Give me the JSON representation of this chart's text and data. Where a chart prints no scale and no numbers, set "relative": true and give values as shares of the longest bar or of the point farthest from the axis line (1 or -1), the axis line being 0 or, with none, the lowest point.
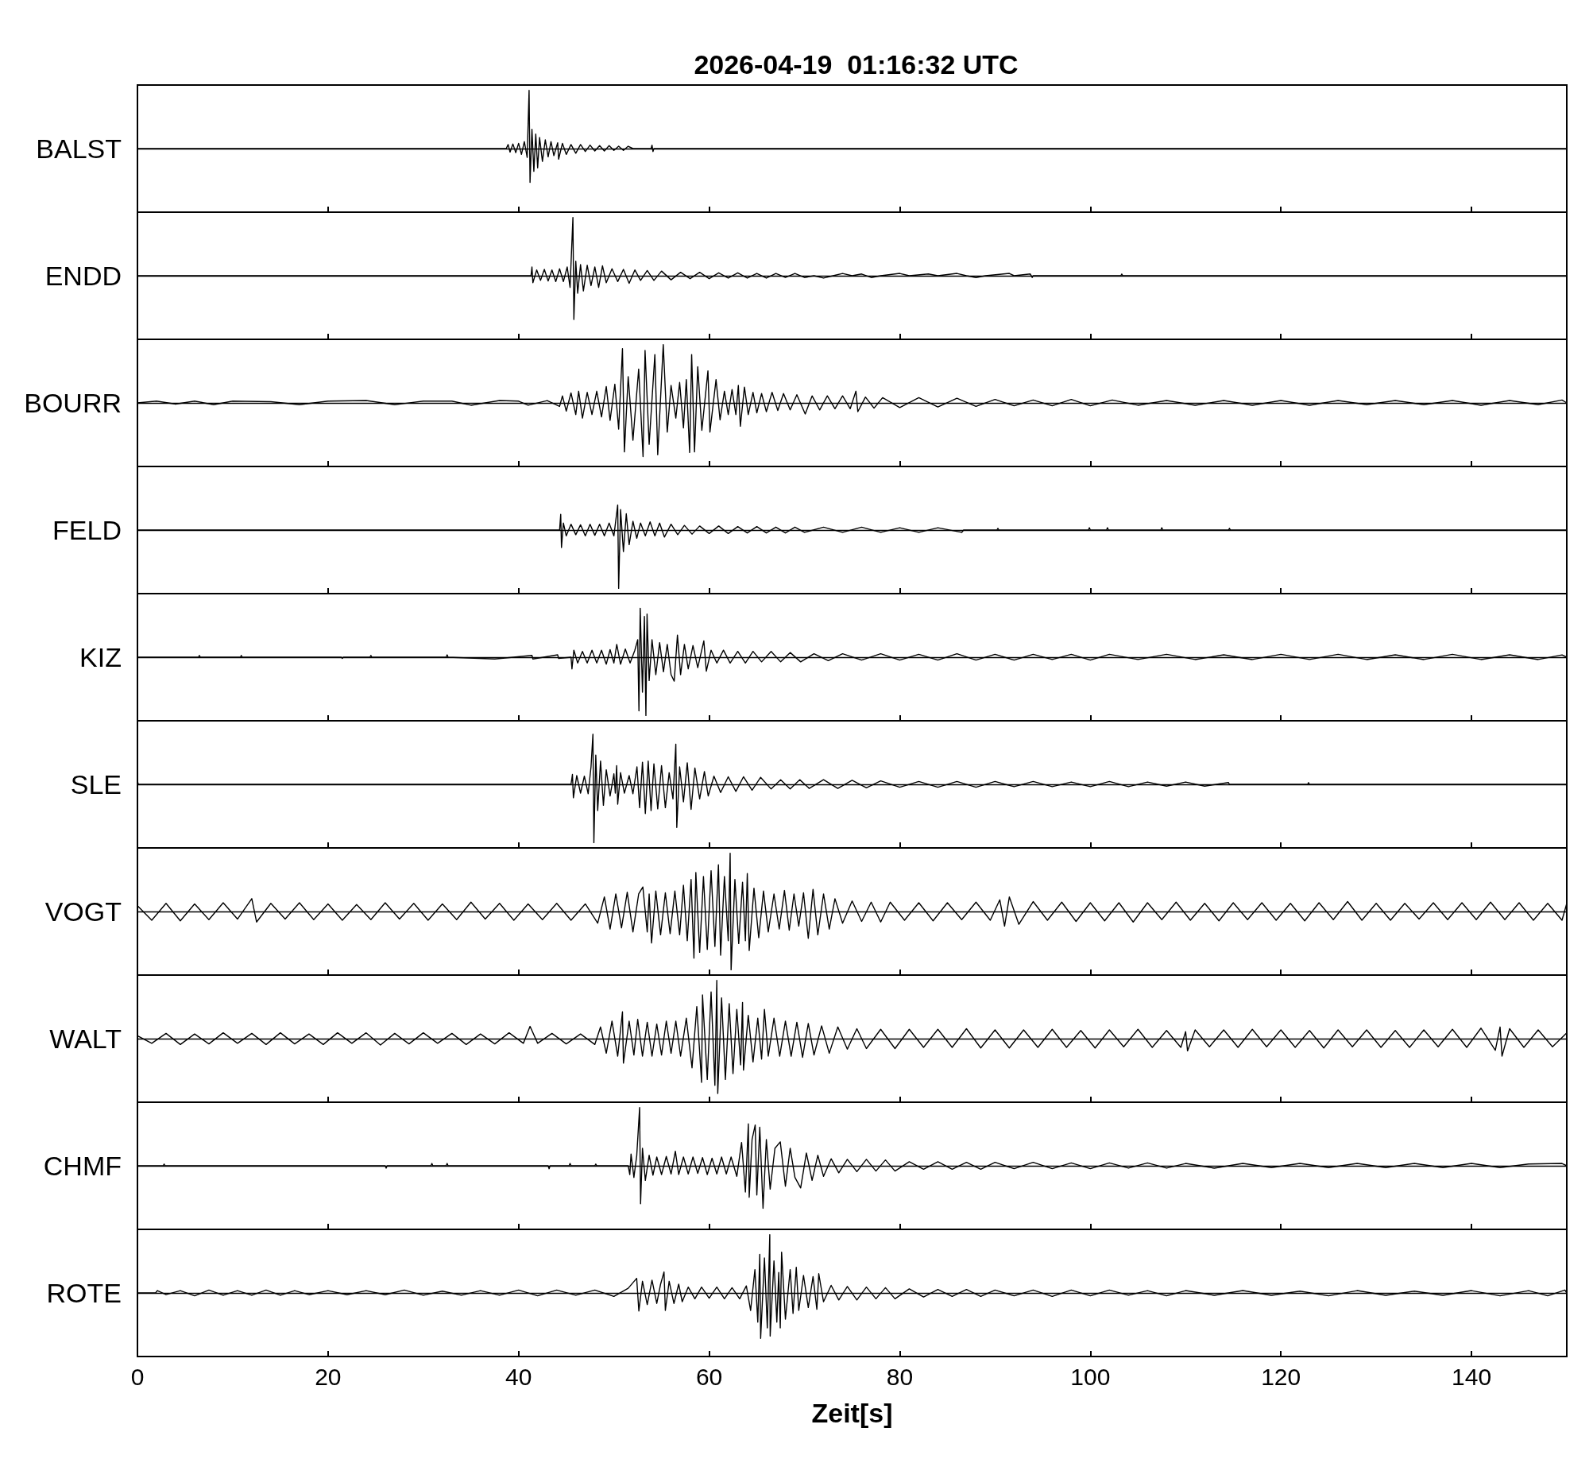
{
  "chart_data": [
    {
      "type": "line",
      "relative": true,
      "title": "2026-04-19  01:16:32 UTC",
      "ylabel": "BALST",
      "color": "#000000",
      "xlim": [
        0,
        150
      ],
      "xticks": [
        0,
        20,
        40,
        60,
        80,
        100,
        120,
        140
      ],
      "tick_labels": false,
      "x": [
        0,
        38.7,
        38.9,
        39.1,
        39.4,
        39.7,
        40.0,
        40.3,
        40.6,
        40.9,
        41.1,
        41.2,
        41.4,
        41.6,
        41.8,
        42.0,
        42.2,
        42.5,
        42.8,
        43.1,
        43.4,
        43.7,
        44.1,
        44.2,
        44.6,
        45.0,
        45.5,
        46.0,
        46.5,
        47.0,
        47.5,
        48.0,
        48.5,
        49.0,
        49.5,
        50.0,
        50.5,
        51.0,
        51.5,
        52.0,
        53.9,
        54.0,
        54.1,
        54.2,
        150
      ],
      "values": [
        0,
        0,
        0.07,
        -0.06,
        0.08,
        -0.07,
        0.09,
        -0.1,
        0.12,
        -0.15,
        1.0,
        -0.58,
        0.33,
        -0.39,
        0.25,
        -0.33,
        0.19,
        -0.22,
        0.15,
        -0.14,
        0.12,
        -0.12,
        0.1,
        -0.18,
        0.09,
        -0.1,
        0.07,
        -0.08,
        0.07,
        -0.05,
        0.06,
        -0.04,
        0.05,
        -0.04,
        0.05,
        -0.03,
        0.04,
        -0.03,
        0.04,
        0,
        0,
        0.06,
        -0.05,
        0,
        0
      ]
    },
    {
      "type": "line",
      "relative": true,
      "ylabel": "ENDD",
      "color": "#000000",
      "xlim": [
        0,
        150
      ],
      "xticks": [
        0,
        20,
        40,
        60,
        80,
        100,
        120,
        140
      ],
      "tick_labels": false,
      "x": [
        0,
        41.3,
        41.4,
        41.5,
        41.9,
        42.3,
        42.7,
        43.1,
        43.5,
        43.9,
        44.3,
        44.7,
        45.1,
        45.4,
        45.7,
        45.8,
        46.0,
        46.2,
        46.5,
        46.8,
        47.2,
        47.6,
        48.0,
        48.4,
        48.8,
        49.2,
        49.8,
        50.4,
        51.0,
        51.6,
        52.2,
        52.8,
        53.5,
        54.2,
        55.0,
        56.0,
        57.0,
        58.0,
        59.0,
        60.0,
        61.0,
        62.0,
        63.0,
        64.0,
        65.0,
        66.0,
        67.0,
        68.0,
        69.0,
        70.0,
        71,
        72,
        73,
        74,
        75,
        76,
        77,
        78,
        80,
        81,
        83,
        84,
        86,
        87,
        88,
        89,
        91.5,
        92,
        93.7,
        93.9,
        94,
        103.2,
        103.3,
        103.4,
        150
      ],
      "values": [
        0,
        0,
        0.15,
        -0.12,
        0.1,
        -0.08,
        0.11,
        -0.09,
        0.1,
        -0.1,
        0.12,
        -0.1,
        0.15,
        -0.2,
        1.0,
        -0.75,
        0.25,
        -0.3,
        0.19,
        -0.26,
        0.18,
        -0.17,
        0.15,
        -0.2,
        0.17,
        -0.12,
        0.12,
        -0.1,
        0.11,
        -0.13,
        0.1,
        -0.08,
        0.09,
        -0.08,
        0.08,
        -0.07,
        0.06,
        -0.05,
        0.06,
        -0.05,
        0.05,
        -0.04,
        0.05,
        -0.04,
        0.04,
        -0.04,
        0.04,
        -0.03,
        0.04,
        -0.03,
        0,
        -0.04,
        0,
        0.04,
        0,
        0.03,
        -0.03,
        0,
        0.04,
        0,
        0.03,
        0,
        0.04,
        0,
        -0.03,
        0,
        0.04,
        0,
        0.03,
        -0.03,
        0,
        0,
        0.03,
        0,
        0
      ]
    },
    {
      "type": "line",
      "relative": true,
      "ylabel": "BOURR",
      "color": "#000000",
      "xlim": [
        0,
        150
      ],
      "xticks": [
        0,
        20,
        40,
        60,
        80,
        100,
        120,
        140
      ],
      "tick_labels": false,
      "x": [
        0,
        2,
        4,
        6,
        8,
        10,
        14,
        17,
        20,
        24,
        27,
        30,
        33,
        35,
        38,
        40,
        41,
        43,
        44.3,
        44.6,
        45.0,
        45.5,
        46.0,
        46.3,
        46.7,
        47.2,
        47.7,
        48.2,
        48.7,
        49.2,
        49.6,
        50.1,
        50.5,
        50.9,
        51.1,
        51.5,
        52.0,
        52.6,
        53.06,
        53.27,
        53.7,
        54.3,
        54.6,
        55.18,
        55.6,
        56.0,
        56.5,
        56.9,
        57.3,
        57.6,
        57.95,
        58.16,
        58.46,
        58.8,
        59.23,
        59.87,
        60.08,
        60.72,
        61.14,
        61.6,
        62.0,
        62.4,
        62.8,
        63.06,
        63.27,
        63.7,
        64.1,
        64.6,
        65.0,
        65.5,
        66.0,
        66.6,
        67.2,
        67.8,
        68.5,
        69.2,
        70.08,
        70.8,
        71.6,
        72.4,
        73.2,
        74.0,
        74.8,
        75.4,
        75.6,
        76.4,
        77.3,
        78.2,
        80,
        82,
        84,
        86,
        88,
        90,
        92,
        94,
        96,
        98,
        100,
        102.3,
        105,
        108,
        111,
        114,
        117,
        120,
        123,
        126,
        129,
        132,
        135,
        138,
        141,
        144,
        147,
        149.5,
        150
      ],
      "values": [
        0,
        0.03,
        -0.02,
        0.03,
        -0.03,
        0.03,
        0.02,
        -0.03,
        0.03,
        0.04,
        -0.03,
        0.03,
        0.03,
        -0.04,
        0.04,
        0.03,
        -0.04,
        0.04,
        -0.06,
        0.12,
        -0.14,
        0.17,
        -0.2,
        0.2,
        -0.26,
        0.18,
        -0.2,
        0.2,
        -0.24,
        0.28,
        -0.3,
        0.32,
        -0.45,
        0.93,
        -0.84,
        0.45,
        -0.64,
        0.58,
        -0.92,
        0.9,
        -0.71,
        0.83,
        -0.89,
        1.0,
        -0.5,
        0.3,
        -0.26,
        0.35,
        -0.43,
        0.4,
        -0.85,
        0.83,
        -0.84,
        0.62,
        -0.47,
        0.55,
        -0.5,
        0.4,
        -0.29,
        0.2,
        -0.2,
        0.23,
        -0.2,
        0.3,
        -0.4,
        0.27,
        -0.2,
        0.18,
        -0.17,
        0.16,
        -0.15,
        0.18,
        -0.13,
        0.16,
        -0.12,
        0.14,
        -0.19,
        0.12,
        -0.12,
        0.12,
        -0.1,
        0.12,
        -0.1,
        0.2,
        -0.15,
        0.1,
        -0.09,
        0.09,
        -0.08,
        0.09,
        -0.07,
        0.08,
        -0.06,
        0.06,
        -0.05,
        0.05,
        -0.05,
        0.06,
        -0.05,
        0.05,
        -0.04,
        0.04,
        -0.04,
        0.04,
        -0.04,
        0.04,
        -0.04,
        0.04,
        -0.03,
        0.04,
        -0.03,
        0.04,
        -0.04,
        0.04,
        -0.03,
        0.05,
        0
      ]
    },
    {
      "type": "line",
      "relative": true,
      "ylabel": "FELD",
      "color": "#000000",
      "xlim": [
        0,
        150
      ],
      "xticks": [
        0,
        20,
        40,
        60,
        80,
        100,
        120,
        140
      ],
      "tick_labels": false,
      "x": [
        0,
        44.3,
        44.42,
        44.5,
        44.7,
        45.0,
        45.5,
        46.0,
        46.5,
        47.0,
        47.5,
        48.0,
        48.5,
        49.0,
        49.5,
        50.0,
        50.4,
        50.5,
        50.7,
        51.0,
        51.3,
        51.6,
        52.0,
        52.4,
        52.8,
        53.3,
        53.8,
        54.3,
        54.8,
        55.3,
        56.0,
        56.7,
        57.4,
        58.2,
        59.0,
        60.0,
        61.0,
        62.0,
        63.0,
        64.0,
        65.0,
        66.0,
        67.0,
        68.0,
        69.0,
        70.0,
        72.0,
        74.0,
        76.0,
        78.0,
        80.0,
        82.0,
        84.0,
        86.5,
        86.7,
        90.2,
        90.3,
        90.4,
        99.8,
        99.9,
        100,
        101.7,
        101.8,
        101.9,
        107.4,
        107.5,
        107.6,
        114.5,
        114.6,
        114.7,
        150
      ],
      "values": [
        0,
        0,
        0.27,
        -0.3,
        0.12,
        -0.1,
        0.1,
        -0.08,
        0.09,
        -0.1,
        0.1,
        -0.09,
        0.1,
        -0.1,
        0.12,
        -0.1,
        0.43,
        -1.0,
        0.35,
        -0.37,
        0.28,
        -0.25,
        0.15,
        -0.14,
        0.12,
        -0.1,
        0.14,
        -0.1,
        0.12,
        -0.12,
        0.1,
        -0.08,
        0.08,
        -0.07,
        0.07,
        -0.06,
        0.07,
        -0.06,
        0.06,
        -0.05,
        0.06,
        -0.05,
        0.05,
        -0.05,
        0.05,
        -0.04,
        0.05,
        -0.04,
        0.05,
        -0.04,
        0.04,
        -0.04,
        0.04,
        -0.04,
        0,
        0,
        0.03,
        0,
        0,
        0.04,
        0,
        0,
        0.04,
        0,
        0,
        0.04,
        0,
        0,
        0.03,
        0,
        0
      ]
    },
    {
      "type": "line",
      "relative": true,
      "ylabel": "KIZ",
      "color": "#000000",
      "xlim": [
        0,
        150
      ],
      "xticks": [
        0,
        20,
        40,
        60,
        80,
        100,
        120,
        140
      ],
      "tick_labels": false,
      "x": [
        0,
        6.4,
        6.5,
        6.6,
        10.8,
        10.9,
        11.0,
        21.4,
        21.5,
        21.6,
        24.4,
        24.5,
        24.6,
        32.4,
        32.5,
        32.6,
        37.5,
        41.4,
        41.5,
        44.1,
        44.2,
        45.5,
        45.6,
        45.8,
        46.2,
        46.7,
        47.2,
        47.7,
        48.2,
        48.7,
        49.2,
        49.6,
        50.0,
        50.3,
        50.7,
        51.2,
        51.7,
        52.2,
        52.5,
        52.63,
        52.76,
        53.0,
        53.2,
        53.36,
        53.48,
        53.7,
        54.0,
        54.4,
        54.8,
        55.2,
        55.6,
        56.0,
        56.33,
        56.67,
        57.0,
        57.4,
        57.8,
        58.3,
        58.8,
        59.44,
        59.7,
        60.2,
        60.8,
        61.5,
        62.2,
        63.0,
        63.8,
        64.6,
        65.5,
        66.5,
        67.5,
        68.5,
        69.6,
        71,
        72.5,
        74,
        76,
        78,
        80,
        82,
        84,
        86,
        88,
        90,
        92,
        94,
        96,
        98,
        100,
        102,
        105,
        108,
        111,
        114,
        117,
        120,
        123,
        126,
        129,
        132,
        135,
        138,
        141,
        144,
        147,
        149.5,
        150
      ],
      "values": [
        0,
        0,
        0.03,
        0,
        0,
        0.03,
        0,
        0,
        -0.02,
        0,
        0,
        0.03,
        0,
        0,
        0.04,
        0,
        -0.03,
        0.03,
        -0.03,
        0.04,
        -0.02,
        0,
        -0.2,
        0.12,
        -0.1,
        0.1,
        -0.1,
        0.12,
        -0.1,
        0.12,
        -0.12,
        0.13,
        -0.1,
        0.22,
        -0.12,
        0.14,
        -0.1,
        0.12,
        0.3,
        -0.92,
        0.84,
        -0.6,
        0.7,
        -1.0,
        0.74,
        -0.4,
        0.3,
        -0.3,
        0.25,
        -0.25,
        0.22,
        -0.3,
        -0.41,
        0.38,
        -0.3,
        0.22,
        -0.2,
        0.2,
        -0.18,
        0.28,
        -0.24,
        0.12,
        -0.1,
        0.12,
        -0.1,
        0.1,
        -0.1,
        0.1,
        -0.08,
        0.1,
        -0.08,
        0.08,
        -0.08,
        0.06,
        -0.06,
        0.06,
        -0.05,
        0.06,
        -0.05,
        0.05,
        -0.05,
        0.06,
        -0.05,
        0.05,
        -0.05,
        0.05,
        -0.04,
        0.05,
        -0.05,
        0.05,
        -0.04,
        0.05,
        -0.04,
        0.04,
        -0.04,
        0.05,
        -0.04,
        0.05,
        -0.04,
        0.04,
        -0.04,
        0.05,
        -0.04,
        0.04,
        -0.04,
        0.04,
        0
      ]
    },
    {
      "type": "line",
      "relative": true,
      "ylabel": "SLE",
      "color": "#000000",
      "xlim": [
        0,
        150
      ],
      "xticks": [
        0,
        20,
        40,
        60,
        80,
        100,
        120,
        140
      ],
      "tick_labels": false,
      "x": [
        0,
        0.1,
        45.5,
        45.65,
        45.75,
        46.1,
        46.5,
        46.9,
        47.3,
        47.6,
        47.8,
        47.9,
        48.1,
        48.3,
        48.6,
        48.9,
        49.2,
        49.6,
        50.0,
        50.15,
        50.29,
        50.4,
        50.7,
        51.1,
        51.6,
        52.0,
        52.42,
        52.7,
        53.0,
        53.3,
        53.6,
        53.9,
        54.2,
        54.6,
        55.0,
        55.4,
        55.8,
        56.2,
        56.5,
        56.6,
        56.9,
        57.3,
        57.7,
        58.1,
        58.5,
        59.0,
        59.5,
        59.9,
        60.5,
        61.2,
        62.0,
        62.8,
        63.6,
        64.5,
        65.4,
        66.5,
        67.5,
        68.5,
        69.5,
        70.5,
        72,
        73.5,
        75,
        76.5,
        78,
        80,
        82,
        84,
        86,
        88,
        90,
        92,
        94,
        96,
        98,
        100,
        102,
        104,
        106,
        108,
        110,
        112,
        114.5,
        114.6,
        122.8,
        122.9,
        123.0,
        150
      ],
      "values": [
        0.05,
        0,
        0,
        0.17,
        -0.23,
        0.15,
        -0.15,
        0.14,
        -0.16,
        0.3,
        0.86,
        -1.0,
        0.5,
        -0.45,
        0.4,
        -0.36,
        0.25,
        -0.2,
        0.18,
        -0.15,
        0.32,
        -0.34,
        0.2,
        -0.15,
        0.15,
        -0.16,
        0.3,
        -0.4,
        0.38,
        -0.5,
        0.4,
        -0.45,
        0.35,
        -0.42,
        0.32,
        -0.4,
        0.2,
        -0.25,
        0.69,
        -0.74,
        0.3,
        -0.3,
        0.37,
        -0.43,
        0.28,
        -0.25,
        0.22,
        -0.2,
        0.14,
        -0.14,
        0.13,
        -0.12,
        0.13,
        -0.1,
        0.12,
        -0.08,
        0.08,
        -0.08,
        0.08,
        -0.07,
        0.08,
        -0.07,
        0.07,
        -0.06,
        0.06,
        -0.05,
        0.05,
        -0.05,
        0.05,
        -0.05,
        0.05,
        -0.04,
        0.05,
        -0.04,
        0.04,
        -0.04,
        0.05,
        -0.04,
        0.04,
        -0.03,
        0.04,
        -0.03,
        0.03,
        0,
        0,
        0.03,
        0,
        0
      ]
    },
    {
      "type": "line",
      "relative": true,
      "ylabel": "VOGT",
      "color": "#000000",
      "xlim": [
        0,
        150
      ],
      "xticks": [
        0,
        20,
        40,
        60,
        80,
        100,
        120,
        140
      ],
      "tick_labels": false,
      "x": [
        0,
        1.5,
        3,
        4.5,
        6,
        7.5,
        9,
        10.5,
        12,
        12.5,
        14,
        15.5,
        17,
        18.5,
        20,
        21.5,
        23,
        24.5,
        26,
        27.5,
        29,
        30.5,
        32,
        33.5,
        35,
        36.5,
        38,
        39.5,
        41,
        42.5,
        44,
        45.5,
        47,
        48.3,
        49.0,
        49.6,
        50.2,
        50.8,
        51.4,
        52.0,
        52.6,
        53.04,
        53.5,
        53.7,
        53.95,
        54.4,
        54.9,
        55.4,
        55.9,
        56.4,
        56.9,
        57.3,
        57.7,
        58.1,
        58.4,
        58.6,
        59.0,
        59.4,
        59.8,
        60.2,
        60.6,
        60.97,
        61.2,
        61.6,
        62.0,
        62.2,
        62.3,
        62.7,
        63.1,
        63.5,
        63.8,
        64.0,
        64.2,
        64.7,
        65.2,
        65.7,
        66.2,
        66.8,
        67.35,
        67.9,
        68.4,
        68.9,
        69.4,
        69.9,
        70.4,
        70.9,
        71.4,
        72.0,
        72.6,
        73.2,
        74,
        75,
        76,
        77,
        78,
        79,
        80.5,
        82,
        83.5,
        85,
        86.5,
        88,
        89.5,
        90.5,
        91,
        91.5,
        92.5,
        94,
        95.5,
        97,
        98.5,
        100,
        101.5,
        103,
        104.5,
        106,
        107.5,
        109,
        110.5,
        112,
        113.5,
        115,
        116.5,
        118,
        119.5,
        121,
        122.5,
        124,
        125.5,
        127,
        128.5,
        130,
        131.5,
        133,
        134.5,
        136,
        137.5,
        139,
        140.5,
        142,
        143.5,
        145,
        146.5,
        148,
        149.5,
        150
      ],
      "values": [
        0.1,
        -0.15,
        0.14,
        -0.16,
        0.13,
        -0.14,
        0.15,
        -0.13,
        0.22,
        -0.18,
        0.14,
        -0.13,
        0.15,
        -0.14,
        0.13,
        -0.15,
        0.12,
        -0.14,
        0.15,
        -0.13,
        0.14,
        -0.15,
        0.13,
        -0.14,
        0.16,
        -0.13,
        0.14,
        -0.15,
        0.13,
        -0.14,
        0.14,
        -0.15,
        0.13,
        -0.2,
        0.25,
        -0.3,
        0.3,
        -0.28,
        0.33,
        -0.35,
        0.3,
        0.42,
        -0.35,
        0.3,
        -0.54,
        0.35,
        -0.4,
        0.32,
        -0.38,
        0.35,
        -0.4,
        0.45,
        -0.5,
        0.55,
        -0.8,
        0.67,
        -0.7,
        0.6,
        -0.65,
        0.7,
        -0.6,
        0.8,
        -0.75,
        0.6,
        -0.5,
        1.0,
        -1.0,
        0.55,
        -0.55,
        0.5,
        -0.5,
        0.65,
        -0.67,
        0.4,
        -0.45,
        0.35,
        -0.35,
        0.3,
        -0.3,
        0.36,
        -0.32,
        0.3,
        -0.25,
        0.32,
        -0.46,
        0.38,
        -0.4,
        0.3,
        -0.3,
        0.22,
        -0.2,
        0.18,
        -0.17,
        0.16,
        -0.18,
        0.16,
        -0.15,
        0.15,
        -0.16,
        0.15,
        -0.14,
        0.16,
        -0.15,
        0.2,
        -0.25,
        0.25,
        -0.22,
        0.17,
        -0.15,
        0.16,
        -0.17,
        0.15,
        -0.16,
        0.15,
        -0.18,
        0.15,
        -0.14,
        0.16,
        -0.15,
        0.14,
        -0.16,
        0.15,
        -0.14,
        0.15,
        -0.15,
        0.14,
        -0.16,
        0.15,
        -0.14,
        0.17,
        -0.15,
        0.14,
        -0.15,
        0.14,
        -0.13,
        0.15,
        -0.14,
        0.15,
        -0.14,
        0.16,
        -0.14,
        0.15,
        -0.15,
        0.14,
        -0.15,
        0.14
      ]
    },
    {
      "type": "line",
      "relative": true,
      "ylabel": "WALT",
      "color": "#000000",
      "xlim": [
        0,
        150
      ],
      "xticks": [
        0,
        20,
        40,
        60,
        80,
        100,
        120,
        140
      ],
      "tick_labels": false,
      "x": [
        0,
        1.5,
        3,
        4.5,
        6,
        7.5,
        9,
        10.5,
        12,
        13.5,
        15,
        16.5,
        18,
        19.5,
        21,
        22.5,
        24,
        25.5,
        27,
        28.5,
        30,
        31.5,
        33,
        34.5,
        36,
        37.5,
        39,
        40.5,
        41.2,
        42,
        43.5,
        45,
        46.5,
        48,
        48.6,
        49.2,
        49.8,
        50.4,
        50.9,
        51.0,
        51.6,
        52.1,
        52.5,
        53.0,
        53.5,
        54.0,
        54.5,
        55.0,
        55.5,
        56.0,
        56.5,
        57.0,
        57.6,
        58.2,
        58.7,
        59.2,
        59.3,
        59.8,
        60.2,
        60.6,
        60.8,
        60.9,
        61.3,
        61.7,
        62.1,
        62.5,
        62.9,
        63.3,
        63.5,
        63.6,
        64.1,
        64.6,
        65.1,
        65.5,
        65.8,
        66.2,
        66.8,
        67.4,
        68.0,
        68.6,
        69.2,
        69.8,
        70.4,
        71.0,
        71.8,
        72.6,
        73.5,
        74.5,
        75.5,
        76.5,
        78,
        79.5,
        81,
        82.5,
        84,
        85.5,
        87,
        88.5,
        90,
        91.5,
        93,
        94.5,
        96,
        97.5,
        99,
        100.5,
        102,
        103.5,
        105,
        106.5,
        108,
        109.5,
        110,
        110.2,
        111,
        112.5,
        114,
        115.5,
        117,
        118.5,
        120,
        121.5,
        123,
        124.5,
        126,
        127.5,
        129,
        130.5,
        132,
        133.5,
        135,
        136.5,
        138,
        139.5,
        141,
        142.5,
        143,
        143.2,
        144,
        145.5,
        147,
        148.5,
        150
      ],
      "values": [
        0.05,
        -0.08,
        0.09,
        -0.1,
        0.08,
        -0.09,
        0.1,
        -0.08,
        0.09,
        -0.1,
        0.1,
        -0.09,
        0.08,
        -0.1,
        0.1,
        -0.08,
        0.1,
        -0.11,
        0.09,
        -0.09,
        0.1,
        -0.08,
        0.09,
        -0.1,
        0.08,
        -0.09,
        0.1,
        -0.08,
        0.21,
        -0.08,
        0.09,
        -0.09,
        0.08,
        -0.1,
        0.2,
        -0.25,
        0.3,
        -0.3,
        0.46,
        -0.42,
        0.3,
        -0.28,
        0.33,
        -0.3,
        0.28,
        -0.3,
        0.25,
        -0.28,
        0.3,
        -0.25,
        0.3,
        -0.3,
        0.35,
        -0.5,
        0.55,
        -0.75,
        0.75,
        -0.7,
        0.8,
        -0.8,
        1.0,
        -0.94,
        0.7,
        -0.7,
        0.6,
        -0.6,
        0.5,
        -0.45,
        0.62,
        -0.54,
        0.4,
        -0.4,
        0.35,
        -0.35,
        0.5,
        -0.3,
        0.35,
        -0.3,
        0.3,
        -0.3,
        0.28,
        -0.32,
        0.26,
        -0.28,
        0.22,
        -0.25,
        0.2,
        -0.18,
        0.17,
        -0.17,
        0.16,
        -0.17,
        0.16,
        -0.15,
        0.16,
        -0.15,
        0.17,
        -0.16,
        0.15,
        -0.16,
        0.15,
        -0.15,
        0.16,
        -0.15,
        0.14,
        -0.16,
        0.15,
        -0.14,
        0.16,
        -0.15,
        0.14,
        -0.15,
        0.12,
        -0.21,
        0.15,
        -0.14,
        0.15,
        -0.15,
        0.16,
        -0.14,
        0.15,
        -0.15,
        0.14,
        -0.16,
        0.15,
        -0.14,
        0.15,
        -0.15,
        0.14,
        -0.15,
        0.15,
        -0.14,
        0.16,
        -0.15,
        0.18,
        -0.2,
        0.2,
        -0.3,
        0.17,
        -0.15,
        0.15,
        -0.14,
        0.1
      ]
    },
    {
      "type": "line",
      "relative": true,
      "ylabel": "CHMF",
      "color": "#000000",
      "xlim": [
        0,
        150
      ],
      "xticks": [
        0,
        20,
        40,
        60,
        80,
        100,
        120,
        140
      ],
      "tick_labels": false,
      "x": [
        0,
        2.7,
        2.8,
        2.9,
        26.0,
        26.1,
        26.2,
        30.8,
        30.9,
        31.0,
        32.4,
        32.5,
        32.6,
        43.1,
        43.2,
        43.3,
        45.3,
        45.4,
        45.5,
        48.0,
        48.1,
        48.2,
        51.5,
        51.67,
        51.8,
        52.1,
        52.4,
        52.7,
        52.8,
        53.0,
        53.3,
        53.7,
        54.1,
        54.5,
        55.0,
        55.5,
        56.0,
        56.45,
        56.8,
        57.3,
        57.8,
        58.3,
        58.8,
        59.3,
        59.8,
        60.3,
        60.8,
        61.3,
        61.8,
        62.3,
        62.9,
        63.4,
        63.8,
        64.11,
        64.2,
        64.5,
        64.83,
        65.0,
        65.31,
        65.65,
        66.0,
        66.4,
        66.9,
        67.46,
        68.0,
        68.5,
        69.0,
        69.6,
        70.2,
        70.8,
        71.4,
        72.0,
        72.8,
        73.6,
        74.5,
        75.5,
        76.5,
        77.5,
        78.5,
        79.5,
        81,
        82.5,
        84,
        85.5,
        87,
        88.5,
        90,
        92,
        94,
        96,
        98,
        100,
        102,
        104,
        106,
        108,
        110,
        113,
        116,
        119,
        122,
        125,
        128,
        131,
        134,
        137,
        140,
        143,
        146,
        149.5,
        150
      ],
      "values": [
        0,
        0,
        0.03,
        0,
        0,
        -0.04,
        0,
        0,
        0.04,
        0,
        0,
        0.04,
        0,
        0,
        -0.05,
        0,
        0,
        0.04,
        0,
        0,
        0.03,
        0,
        0,
        -0.15,
        0.2,
        -0.2,
        0.18,
        1.0,
        -0.65,
        0.3,
        -0.25,
        0.18,
        -0.16,
        0.15,
        -0.15,
        0.16,
        -0.14,
        0.25,
        -0.15,
        0.15,
        -0.14,
        0.15,
        -0.13,
        0.14,
        -0.15,
        0.13,
        -0.14,
        0.15,
        -0.14,
        0.15,
        -0.18,
        0.4,
        -0.45,
        0.72,
        -0.54,
        0.45,
        0.7,
        -0.5,
        0.66,
        -0.73,
        0.45,
        -0.4,
        0.3,
        0.41,
        -0.35,
        0.3,
        -0.2,
        -0.38,
        0.22,
        -0.25,
        0.18,
        -0.18,
        0.12,
        -0.12,
        0.11,
        -0.1,
        0.11,
        -0.09,
        0.1,
        -0.09,
        0.07,
        -0.06,
        0.07,
        -0.06,
        0.06,
        -0.06,
        0.06,
        -0.05,
        0.06,
        -0.05,
        0.05,
        -0.05,
        0.05,
        -0.04,
        0.05,
        -0.04,
        0.04,
        -0.04,
        0.04,
        -0.03,
        0.04,
        -0.03,
        0.04,
        -0.03,
        0.04,
        -0.03,
        0.04,
        -0.03,
        0.03,
        0.04,
        0
      ]
    },
    {
      "type": "line",
      "relative": true,
      "ylabel": "ROTE",
      "xlabel": "Zeit[s]",
      "color": "#000000",
      "xlim": [
        0,
        150
      ],
      "xticks": [
        0,
        20,
        40,
        60,
        80,
        100,
        120,
        140
      ],
      "tick_labels": "x",
      "x": [
        0,
        1.9,
        2.1,
        3,
        4.5,
        6,
        7.5,
        9,
        10.5,
        12,
        13.5,
        15,
        16.5,
        18,
        20,
        22,
        24,
        26,
        28,
        30,
        32,
        34,
        36,
        38,
        40,
        42,
        44,
        46,
        48,
        50,
        51.5,
        52.39,
        52.62,
        53.0,
        53.5,
        54.0,
        54.5,
        54.9,
        55.26,
        55.4,
        55.8,
        56.3,
        56.8,
        57.17,
        57.8,
        58.5,
        59.2,
        60.0,
        60.8,
        61.6,
        62.4,
        63.2,
        63.9,
        64.35,
        64.8,
        65.1,
        65.31,
        65.4,
        65.8,
        66.1,
        66.36,
        66.4,
        66.8,
        67.1,
        67.3,
        67.46,
        67.6,
        68.0,
        68.5,
        68.8,
        69.14,
        69.4,
        69.9,
        70.4,
        70.9,
        71.3,
        71.5,
        72.0,
        72.8,
        73.6,
        74.5,
        75.5,
        76.5,
        77.5,
        78.5,
        79.5,
        81,
        82.5,
        84,
        85.5,
        87,
        88.5,
        90,
        92,
        94,
        96,
        98,
        100,
        102,
        104,
        106,
        108,
        110,
        113,
        116,
        119,
        122,
        125,
        128,
        131,
        134,
        137,
        140,
        143,
        146,
        148,
        149.8,
        150
      ],
      "values": [
        0,
        0,
        0.04,
        -0.03,
        0.04,
        -0.05,
        0.05,
        -0.04,
        0.04,
        -0.04,
        0.05,
        -0.04,
        0.04,
        -0.03,
        0.04,
        -0.03,
        0.04,
        -0.03,
        0.05,
        -0.04,
        0.03,
        -0.04,
        0.04,
        -0.04,
        0.05,
        -0.05,
        0.05,
        -0.04,
        0.05,
        -0.06,
        0.08,
        0.25,
        -0.31,
        0.2,
        -0.2,
        0.22,
        -0.18,
        0.15,
        0.36,
        -0.3,
        0.2,
        -0.18,
        0.15,
        -0.15,
        0.1,
        -0.1,
        0.1,
        -0.09,
        0.1,
        -0.1,
        0.09,
        -0.1,
        0.12,
        -0.3,
        0.4,
        -0.5,
        0.66,
        -0.78,
        0.6,
        -0.6,
        1.0,
        -0.74,
        0.55,
        -0.5,
        0.35,
        -0.6,
        0.7,
        -0.45,
        0.4,
        -0.35,
        0.44,
        -0.3,
        0.3,
        -0.25,
        0.28,
        -0.28,
        0.33,
        -0.15,
        0.13,
        -0.12,
        0.11,
        -0.12,
        0.1,
        -0.1,
        0.09,
        -0.1,
        0.07,
        -0.07,
        0.06,
        -0.06,
        0.06,
        -0.06,
        0.05,
        -0.05,
        0.05,
        -0.06,
        0.05,
        -0.05,
        0.05,
        -0.04,
        0.04,
        -0.05,
        0.04,
        -0.04,
        0.04,
        -0.04,
        0.03,
        -0.05,
        0.04,
        -0.04,
        0.03,
        -0.04,
        0.04,
        -0.05,
        0.04,
        -0.05,
        0.05,
        0
      ]
    }
  ]
}
